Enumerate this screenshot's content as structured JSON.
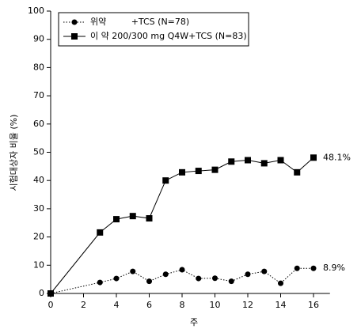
{
  "chart_data": {
    "type": "line",
    "x_label": "주",
    "y_label": "시험대상자 비율  (%)",
    "x": [
      0,
      3,
      4,
      5,
      6,
      7,
      8,
      9,
      10,
      11,
      12,
      13,
      14,
      15,
      16
    ],
    "series": [
      {
        "name": "위약         +TCS (N=78)",
        "color": "#000000",
        "style": "dotted",
        "marker": "circle",
        "values": [
          0,
          3.9,
          5.3,
          7.8,
          4.3,
          6.8,
          8.4,
          5.3,
          5.4,
          4.3,
          6.8,
          7.8,
          3.6,
          8.9,
          8.9
        ]
      },
      {
        "name": "이 약 200/300 mg Q4W+TCS (N=83)",
        "color": "#000000",
        "style": "solid",
        "marker": "square",
        "values": [
          0,
          21.6,
          26.3,
          27.4,
          26.6,
          40,
          42.9,
          43.4,
          43.8,
          46.7,
          47.2,
          46.1,
          47.2,
          42.9,
          48.1
        ]
      }
    ],
    "annotations": [
      {
        "series": 1,
        "text": "48.1%"
      },
      {
        "series": 0,
        "text": "8.9%"
      }
    ],
    "xlim": [
      0,
      17
    ],
    "xticks": [
      0,
      2,
      4,
      6,
      8,
      10,
      12,
      14,
      16
    ],
    "ylim": [
      0,
      100
    ],
    "yticks": [
      0,
      10,
      20,
      30,
      40,
      50,
      60,
      70,
      80,
      90,
      100
    ],
    "grid": false,
    "legend": "top-left"
  }
}
